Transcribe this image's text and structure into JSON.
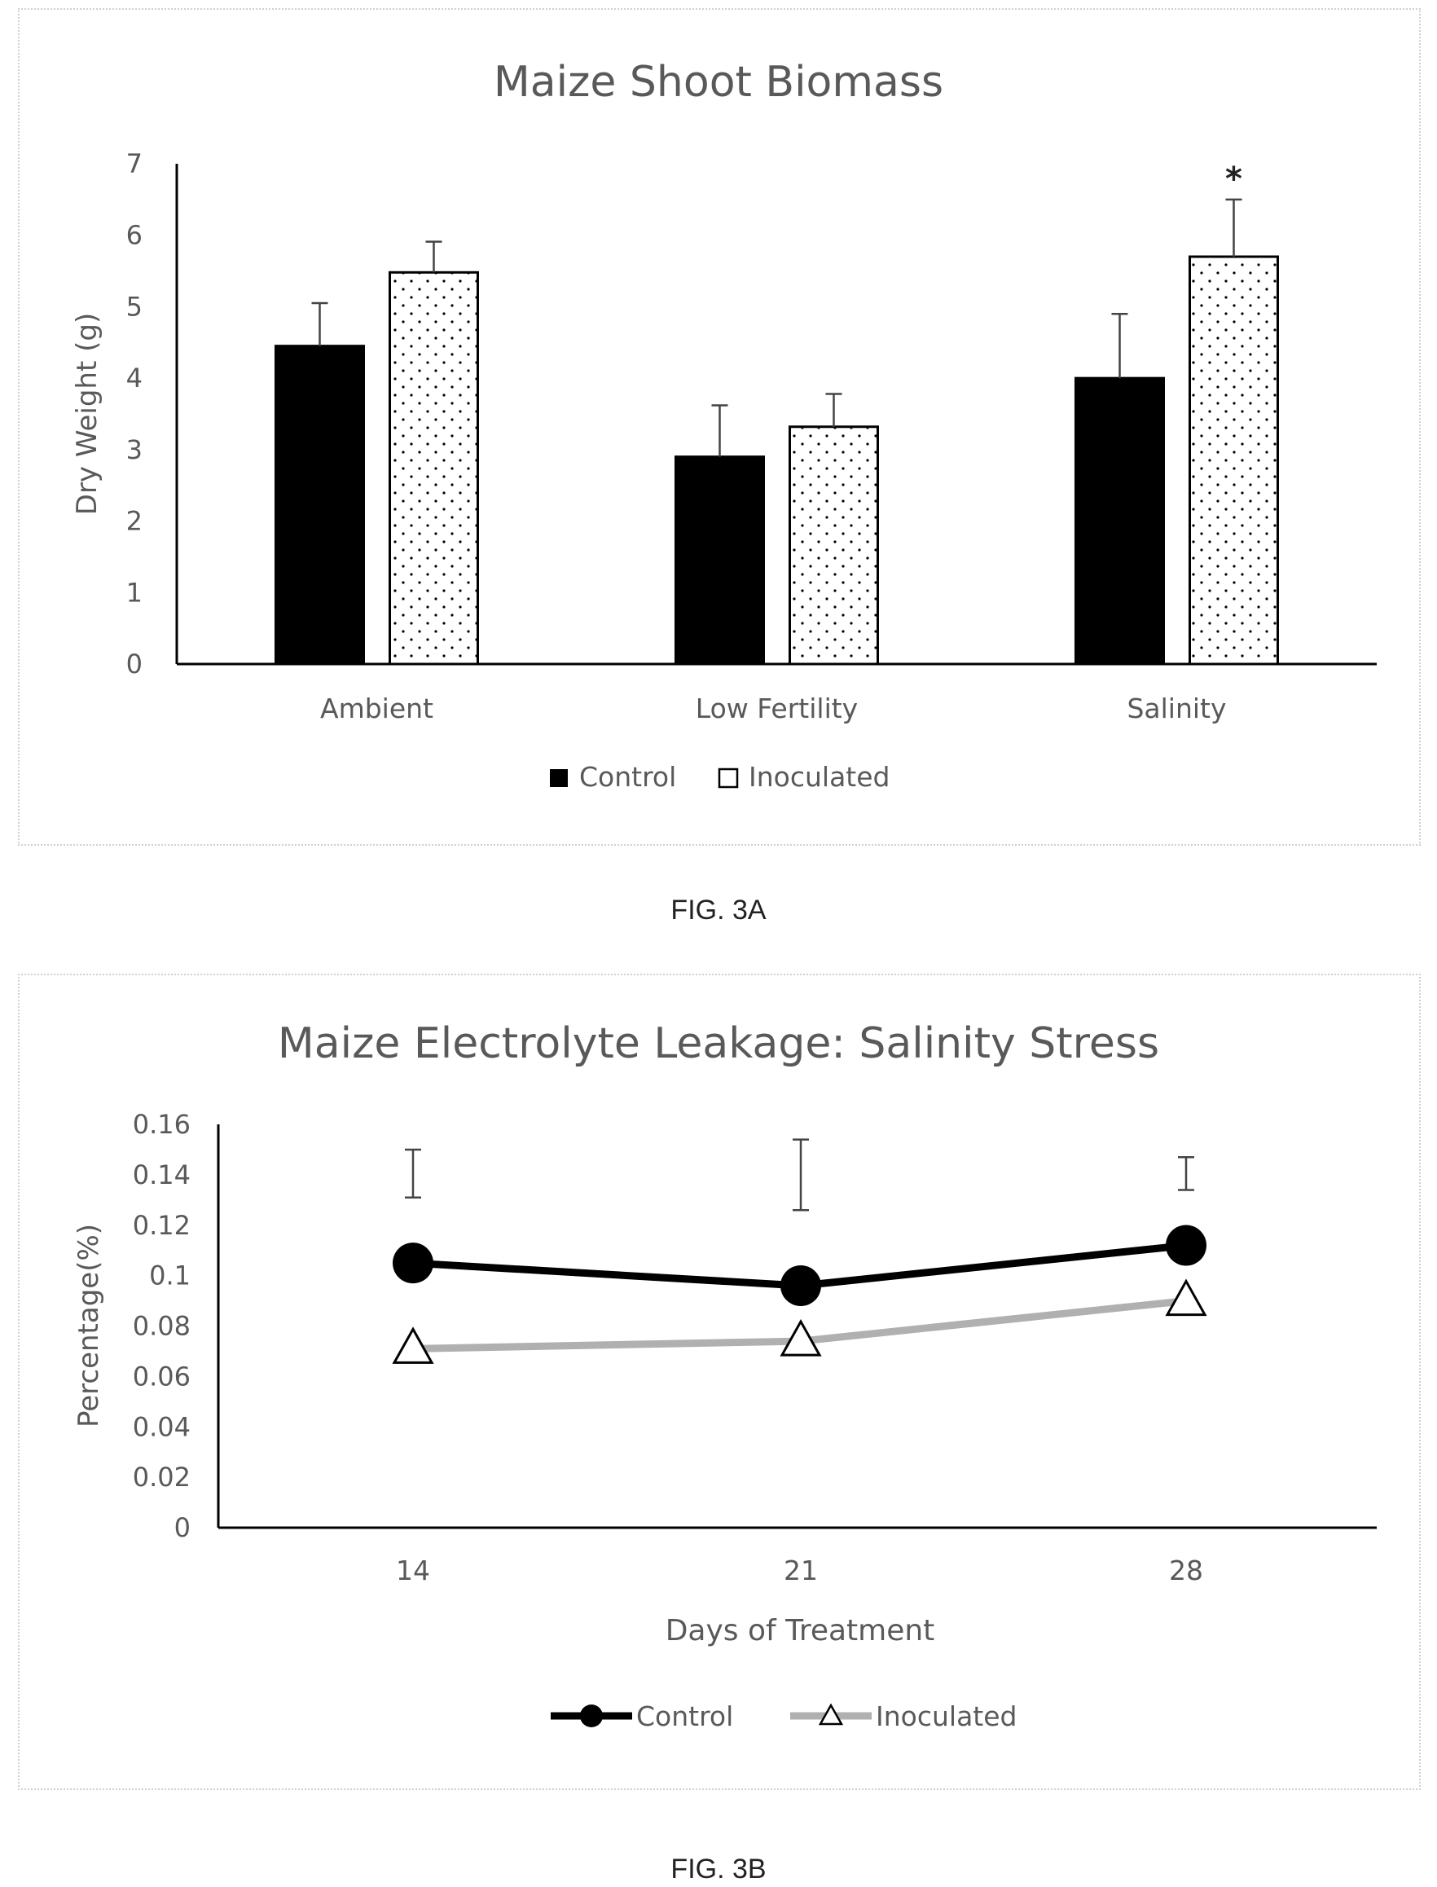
{
  "chart_data": [
    {
      "type": "bar",
      "title": "Maize Shoot Biomass",
      "xlabel": "",
      "ylabel": "Dry Weight (g)",
      "ylim": [
        0,
        7
      ],
      "yticks": [
        "0",
        "1",
        "2",
        "3",
        "4",
        "5",
        "6",
        "7"
      ],
      "categories": [
        "Ambient",
        "Low Fertility",
        "Salinity"
      ],
      "series": [
        {
          "name": "Control",
          "values": [
            4.45,
            2.9,
            4.0
          ],
          "errors": [
            0.6,
            0.72,
            0.9
          ],
          "style": "solid-black"
        },
        {
          "name": "Inoculated",
          "values": [
            5.48,
            3.32,
            5.7
          ],
          "errors": [
            0.43,
            0.46,
            0.8
          ],
          "style": "dotted"
        }
      ],
      "annotations": [
        {
          "category": "Salinity",
          "series": "Inoculated",
          "text": "*"
        }
      ],
      "legend": "bottom",
      "grid": false
    },
    {
      "type": "line",
      "title": "Maize Electrolyte Leakage: Salinity Stress",
      "xlabel": "Days of Treatment",
      "ylabel": "Percentage(%)",
      "ylim": [
        0,
        0.16
      ],
      "yticks": [
        "0",
        "0.02",
        "0.04",
        "0.06",
        "0.08",
        "0.1",
        "0.12",
        "0.14",
        "0.16"
      ],
      "x": [
        "14",
        "21",
        "28"
      ],
      "series": [
        {
          "name": "Control",
          "values": [
            0.105,
            0.096,
            0.112
          ],
          "marker": "circle",
          "color": "#000000"
        },
        {
          "name": "Inoculated",
          "values": [
            0.071,
            0.074,
            0.09
          ],
          "marker": "triangle",
          "color": "#b0b0b0"
        }
      ],
      "error_bars": [
        {
          "x": "14",
          "low": 0.131,
          "high": 0.15
        },
        {
          "x": "21",
          "low": 0.126,
          "high": 0.154
        },
        {
          "x": "28",
          "low": 0.134,
          "high": 0.147
        }
      ],
      "legend": "bottom",
      "grid": false
    }
  ],
  "captions": {
    "a": "FIG. 3A",
    "b": "FIG. 3B"
  }
}
